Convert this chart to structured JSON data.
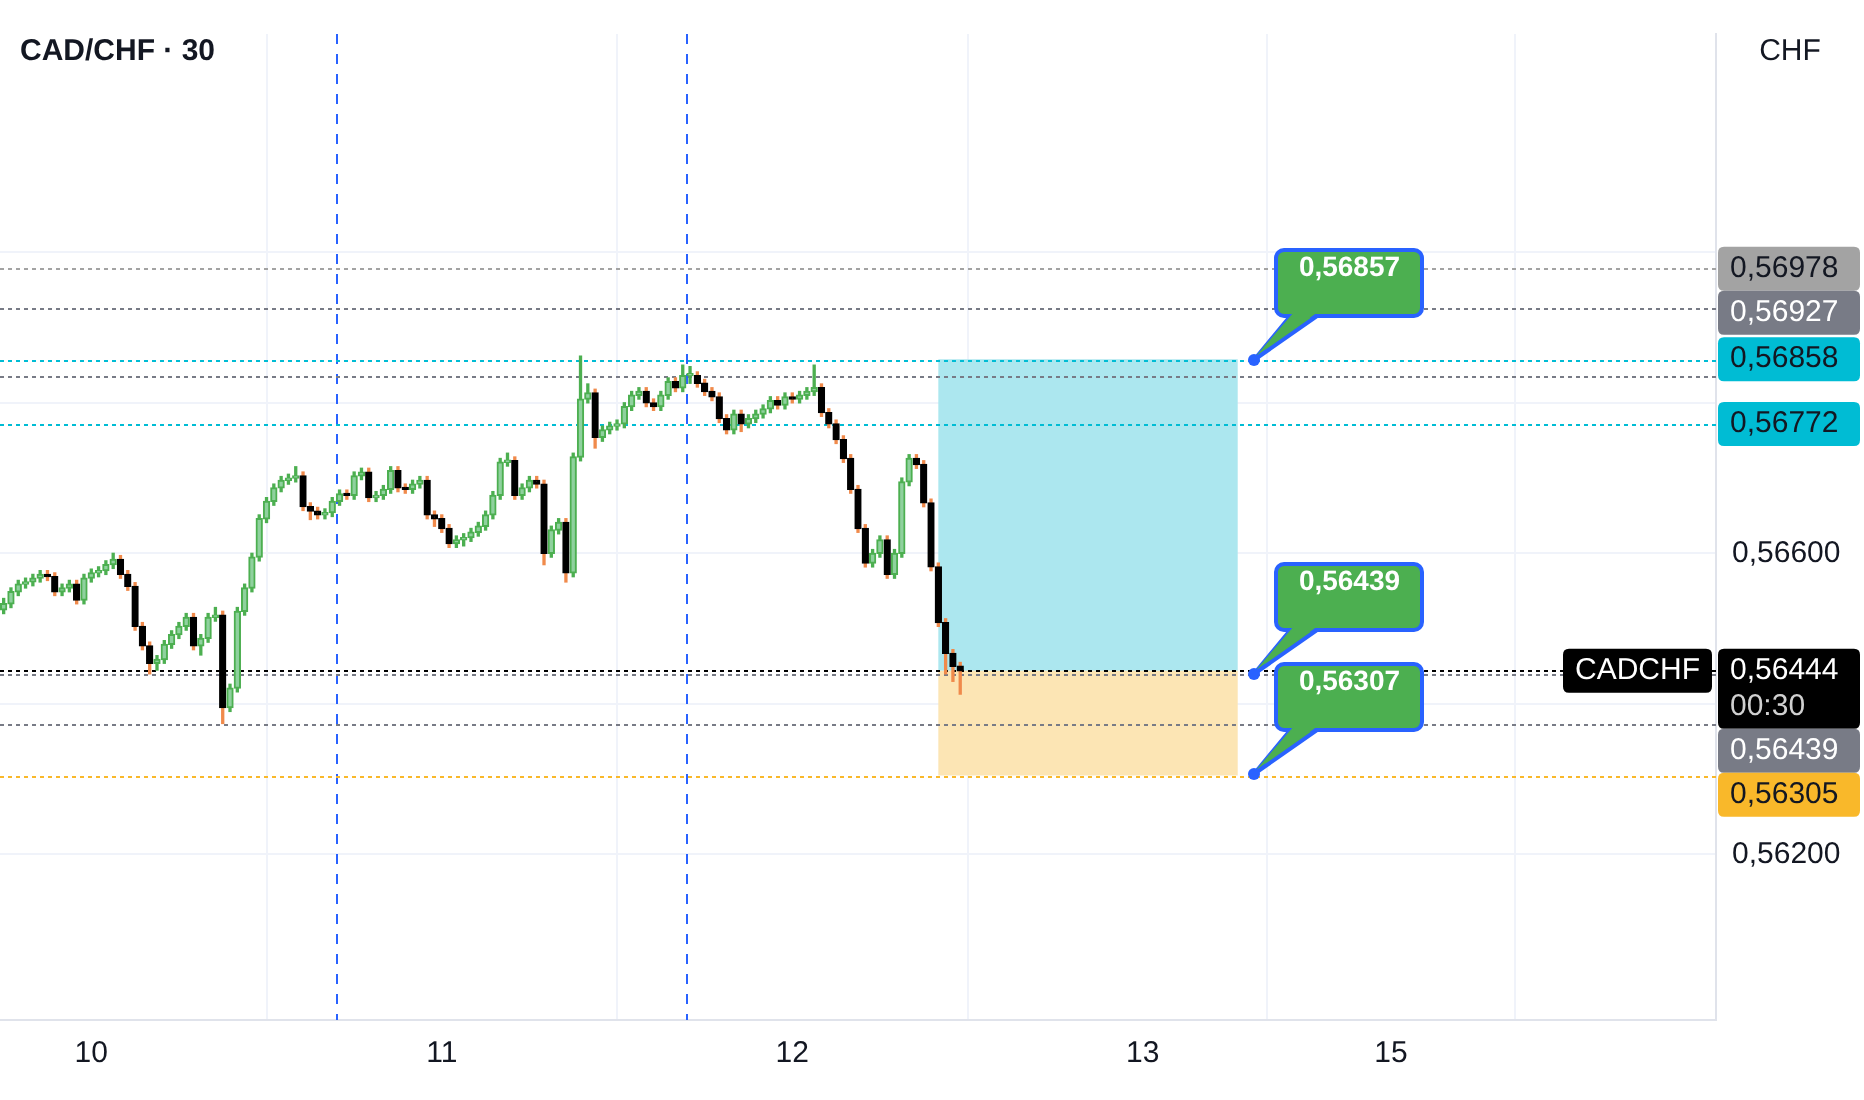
{
  "chart_data": {
    "type": "candlestick",
    "title": "CAD/CHF · 30",
    "ylabel": "CHF",
    "categories": [
      null,
      null,
      null,
      null,
      null,
      null,
      null,
      null,
      null,
      null,
      null,
      null,
      "10",
      null,
      null,
      null,
      null,
      null,
      null,
      null,
      null,
      null,
      null,
      null,
      null,
      null,
      null,
      null,
      null,
      null,
      null,
      null,
      null,
      null,
      null,
      null,
      null,
      null,
      null,
      null,
      null,
      null,
      null,
      null,
      null,
      null,
      null,
      null,
      null,
      null,
      null,
      null,
      null,
      null,
      null,
      null,
      null,
      null,
      null,
      null,
      "11",
      null,
      null,
      null,
      null,
      null,
      null,
      null,
      null,
      null,
      null,
      null,
      null,
      null,
      null,
      null,
      null,
      null,
      null,
      null,
      null,
      null,
      null,
      null,
      null,
      null,
      null,
      null,
      null,
      null,
      null,
      null,
      null,
      null,
      null,
      null,
      null,
      null,
      null,
      null,
      null,
      null,
      null,
      null,
      null,
      null,
      null,
      null,
      "12",
      null,
      null,
      null,
      null,
      null,
      null,
      null,
      null,
      null,
      null,
      null,
      null,
      null,
      null,
      null,
      null,
      null,
      null,
      null,
      null,
      null,
      null,
      null,
      null,
      null,
      null,
      null,
      null,
      null,
      null,
      null,
      null,
      null,
      null,
      null,
      null,
      null,
      null,
      null,
      null,
      null,
      null,
      null,
      null,
      null,
      null,
      null,
      "13",
      null,
      null,
      null,
      null,
      null,
      null,
      null,
      null,
      null,
      null,
      null,
      null,
      null,
      null,
      null,
      null,
      null,
      null,
      null,
      null,
      null,
      null,
      null,
      null,
      null,
      null,
      null,
      null,
      null,
      null,
      null,
      null,
      null,
      "15",
      null,
      null,
      null,
      null,
      null,
      null,
      null,
      null,
      null,
      null,
      null,
      null,
      null,
      null,
      null,
      null,
      null,
      null,
      null,
      null,
      null,
      null,
      null,
      null,
      null,
      null,
      null,
      null,
      null,
      null,
      null,
      null,
      null,
      null,
      null,
      null,
      null,
      null,
      null,
      null,
      null,
      null,
      null,
      null
    ],
    "ohlc": [
      [
        0.56525,
        0.5654,
        0.5652,
        0.56533
      ],
      [
        0.56533,
        0.56554,
        0.56528,
        0.56549
      ],
      [
        0.56549,
        0.56564,
        0.56544,
        0.56559
      ],
      [
        0.56559,
        0.56567,
        0.56554,
        0.56562
      ],
      [
        0.56562,
        0.56572,
        0.56557,
        0.56567
      ],
      [
        0.56567,
        0.56577,
        0.56562,
        0.56572
      ],
      [
        0.56572,
        0.56577,
        0.56564,
        0.56569
      ],
      [
        0.56569,
        0.56574,
        0.56544,
        0.56549
      ],
      [
        0.56549,
        0.56559,
        0.56544,
        0.56554
      ],
      [
        0.56554,
        0.56564,
        0.56549,
        0.56559
      ],
      [
        0.56559,
        0.56564,
        0.56533,
        0.56538
      ],
      [
        0.56538,
        0.56572,
        0.56533,
        0.56567
      ],
      [
        0.56567,
        0.56579,
        0.56562,
        0.56574
      ],
      [
        0.56574,
        0.56582,
        0.56569,
        0.56577
      ],
      [
        0.56577,
        0.5659,
        0.56572,
        0.56585
      ],
      [
        0.56585,
        0.566,
        0.5658,
        0.56592
      ],
      [
        0.56592,
        0.56597,
        0.56567,
        0.56572
      ],
      [
        0.56572,
        0.56577,
        0.56551,
        0.56556
      ],
      [
        0.56556,
        0.56561,
        0.56498,
        0.56503
      ],
      [
        0.56503,
        0.56508,
        0.56472,
        0.56477
      ],
      [
        0.56477,
        0.56482,
        0.5644,
        0.56454
      ],
      [
        0.56454,
        0.56464,
        0.56445,
        0.56459
      ],
      [
        0.56459,
        0.56484,
        0.56454,
        0.56479
      ],
      [
        0.56479,
        0.56497,
        0.56474,
        0.56492
      ],
      [
        0.56492,
        0.56508,
        0.56487,
        0.56503
      ],
      [
        0.56503,
        0.5652,
        0.56498,
        0.56515
      ],
      [
        0.56515,
        0.5652,
        0.56472,
        0.56477
      ],
      [
        0.56477,
        0.56492,
        0.56465,
        0.56487
      ],
      [
        0.56487,
        0.5652,
        0.56482,
        0.56515
      ],
      [
        0.56515,
        0.56528,
        0.5651,
        0.56518
      ],
      [
        0.56518,
        0.56523,
        0.56374,
        0.56395
      ],
      [
        0.56395,
        0.56426,
        0.5639,
        0.56421
      ],
      [
        0.56421,
        0.56528,
        0.56416,
        0.56523
      ],
      [
        0.56523,
        0.56559,
        0.56518,
        0.56554
      ],
      [
        0.56554,
        0.566,
        0.56549,
        0.56595
      ],
      [
        0.56595,
        0.56651,
        0.5659,
        0.56646
      ],
      [
        0.56646,
        0.56674,
        0.56641,
        0.56669
      ],
      [
        0.56669,
        0.56692,
        0.56664,
        0.56687
      ],
      [
        0.56687,
        0.56702,
        0.56682,
        0.56697
      ],
      [
        0.56697,
        0.56705,
        0.56692,
        0.567
      ],
      [
        0.567,
        0.56715,
        0.56695,
        0.56703
      ],
      [
        0.56703,
        0.56708,
        0.56657,
        0.56662
      ],
      [
        0.56662,
        0.56667,
        0.56645,
        0.56656
      ],
      [
        0.56656,
        0.56661,
        0.56646,
        0.56651
      ],
      [
        0.56651,
        0.56659,
        0.56646,
        0.56654
      ],
      [
        0.56654,
        0.56674,
        0.56649,
        0.56669
      ],
      [
        0.56669,
        0.56684,
        0.56664,
        0.56679
      ],
      [
        0.56679,
        0.56684,
        0.56672,
        0.56677
      ],
      [
        0.56677,
        0.56708,
        0.56672,
        0.56703
      ],
      [
        0.56703,
        0.56713,
        0.56698,
        0.56708
      ],
      [
        0.56708,
        0.56713,
        0.56669,
        0.56674
      ],
      [
        0.56674,
        0.56682,
        0.56669,
        0.56677
      ],
      [
        0.56677,
        0.5669,
        0.56672,
        0.56685
      ],
      [
        0.56685,
        0.56715,
        0.5668,
        0.5671
      ],
      [
        0.5671,
        0.56715,
        0.56682,
        0.56687
      ],
      [
        0.56687,
        0.56692,
        0.5668,
        0.56685
      ],
      [
        0.56685,
        0.56697,
        0.5668,
        0.56692
      ],
      [
        0.56692,
        0.56702,
        0.56687,
        0.56697
      ],
      [
        0.56697,
        0.56702,
        0.56646,
        0.56651
      ],
      [
        0.56651,
        0.56656,
        0.56636,
        0.56646
      ],
      [
        0.56646,
        0.56651,
        0.56628,
        0.56633
      ],
      [
        0.56633,
        0.56638,
        0.56608,
        0.56613
      ],
      [
        0.56613,
        0.56623,
        0.56608,
        0.56618
      ],
      [
        0.56618,
        0.56626,
        0.5661,
        0.56621
      ],
      [
        0.56621,
        0.56633,
        0.56616,
        0.56628
      ],
      [
        0.56628,
        0.56641,
        0.56623,
        0.56636
      ],
      [
        0.56636,
        0.56656,
        0.56631,
        0.56651
      ],
      [
        0.56651,
        0.56682,
        0.56646,
        0.56677
      ],
      [
        0.56677,
        0.56726,
        0.56672,
        0.56721
      ],
      [
        0.56721,
        0.56733,
        0.56716,
        0.56723
      ],
      [
        0.56723,
        0.56728,
        0.56672,
        0.56677
      ],
      [
        0.56677,
        0.56692,
        0.56672,
        0.56687
      ],
      [
        0.56687,
        0.56702,
        0.56682,
        0.56697
      ],
      [
        0.56697,
        0.56702,
        0.56687,
        0.56692
      ],
      [
        0.56692,
        0.56697,
        0.56585,
        0.566
      ],
      [
        0.566,
        0.56636,
        0.56595,
        0.56631
      ],
      [
        0.56631,
        0.56646,
        0.56626,
        0.56641
      ],
      [
        0.56641,
        0.56646,
        0.56562,
        0.56574
      ],
      [
        0.56574,
        0.56733,
        0.56569,
        0.56728
      ],
      [
        0.56728,
        0.56862,
        0.56723,
        0.56805
      ],
      [
        0.56805,
        0.56825,
        0.568,
        0.56813
      ],
      [
        0.56813,
        0.56818,
        0.5674,
        0.56754
      ],
      [
        0.56754,
        0.56769,
        0.56749,
        0.56764
      ],
      [
        0.56764,
        0.56774,
        0.56759,
        0.56769
      ],
      [
        0.56769,
        0.56777,
        0.56764,
        0.56772
      ],
      [
        0.56772,
        0.568,
        0.56767,
        0.56795
      ],
      [
        0.56795,
        0.56815,
        0.5679,
        0.5681
      ],
      [
        0.5681,
        0.5682,
        0.56805,
        0.56815
      ],
      [
        0.56815,
        0.5682,
        0.56795,
        0.568
      ],
      [
        0.568,
        0.56805,
        0.5679,
        0.56795
      ],
      [
        0.56795,
        0.56815,
        0.5679,
        0.5681
      ],
      [
        0.5681,
        0.56833,
        0.56805,
        0.56828
      ],
      [
        0.56828,
        0.56833,
        0.56815,
        0.5682
      ],
      [
        0.5682,
        0.5685,
        0.56815,
        0.56836
      ],
      [
        0.56836,
        0.56848,
        0.56826,
        0.56836
      ],
      [
        0.56836,
        0.56841,
        0.56821,
        0.56826
      ],
      [
        0.56826,
        0.56831,
        0.5681,
        0.56815
      ],
      [
        0.56815,
        0.5682,
        0.56803,
        0.56808
      ],
      [
        0.56808,
        0.56813,
        0.56774,
        0.56779
      ],
      [
        0.56779,
        0.56784,
        0.56759,
        0.56764
      ],
      [
        0.56764,
        0.5679,
        0.56759,
        0.56785
      ],
      [
        0.56785,
        0.5679,
        0.56762,
        0.56772
      ],
      [
        0.56772,
        0.56784,
        0.56767,
        0.56779
      ],
      [
        0.56779,
        0.5679,
        0.56774,
        0.56785
      ],
      [
        0.56785,
        0.56797,
        0.5678,
        0.56792
      ],
      [
        0.56792,
        0.56808,
        0.56787,
        0.56803
      ],
      [
        0.56803,
        0.56808,
        0.56792,
        0.56797
      ],
      [
        0.56797,
        0.56813,
        0.56792,
        0.56808
      ],
      [
        0.56808,
        0.56813,
        0.568,
        0.56805
      ],
      [
        0.56805,
        0.56815,
        0.568,
        0.5681
      ],
      [
        0.5681,
        0.5682,
        0.56805,
        0.56815
      ],
      [
        0.56815,
        0.5685,
        0.5681,
        0.5682
      ],
      [
        0.5682,
        0.56825,
        0.56782,
        0.56787
      ],
      [
        0.56787,
        0.56792,
        0.56767,
        0.56772
      ],
      [
        0.56772,
        0.56777,
        0.56746,
        0.56751
      ],
      [
        0.56751,
        0.56756,
        0.56721,
        0.56726
      ],
      [
        0.56726,
        0.56731,
        0.5668,
        0.56685
      ],
      [
        0.56685,
        0.5669,
        0.56628,
        0.56633
      ],
      [
        0.56633,
        0.56638,
        0.56582,
        0.56587
      ],
      [
        0.56587,
        0.56605,
        0.56582,
        0.566
      ],
      [
        0.566,
        0.56623,
        0.56595,
        0.56618
      ],
      [
        0.56618,
        0.56623,
        0.56567,
        0.56572
      ],
      [
        0.56572,
        0.56605,
        0.56567,
        0.566
      ],
      [
        0.566,
        0.567,
        0.56595,
        0.56695
      ],
      [
        0.56695,
        0.56731,
        0.5669,
        0.56726
      ],
      [
        0.56726,
        0.56731,
        0.56713,
        0.56718
      ],
      [
        0.56718,
        0.56723,
        0.56662,
        0.56667
      ],
      [
        0.56667,
        0.56672,
        0.56577,
        0.56582
      ],
      [
        0.56582,
        0.56587,
        0.56503,
        0.56508
      ],
      [
        0.56508,
        0.56513,
        0.5644,
        0.56467
      ],
      [
        0.56467,
        0.56472,
        0.5643,
        0.5645
      ],
      [
        0.5645,
        0.56455,
        0.56413,
        0.56444
      ],
      null,
      null,
      null,
      null,
      null,
      null,
      null,
      null,
      null,
      null,
      null,
      null,
      null,
      null,
      null,
      null,
      null,
      null,
      null,
      null,
      null,
      null,
      null,
      null,
      null,
      null,
      null,
      null,
      null,
      null,
      null,
      null,
      null,
      null,
      null,
      null,
      null,
      null,
      null,
      null,
      null,
      null,
      null,
      null,
      null,
      null,
      null,
      null,
      null,
      null,
      null,
      null,
      null,
      null,
      null,
      null,
      null,
      null,
      null,
      null,
      null,
      null,
      null,
      null,
      null,
      null,
      null,
      null,
      null,
      null,
      null,
      null,
      null,
      null,
      null,
      null,
      null,
      null,
      null,
      null,
      null,
      null,
      null,
      null,
      null,
      null,
      null,
      null,
      null,
      null,
      null,
      null,
      null,
      null,
      null,
      null,
      null,
      null,
      null,
      null,
      null,
      null,
      null
    ],
    "ylim": [
      0.5598,
      0.5729
    ],
    "yticks": [
      {
        "value": 0.562,
        "label": "0,56200"
      },
      {
        "value": 0.564,
        "label": null
      },
      {
        "value": 0.566,
        "label": "0,56600"
      },
      {
        "value": 0.568,
        "label": null
      },
      {
        "value": 0.57,
        "label": null
      }
    ],
    "grid": true,
    "ref_lines": [
      {
        "axis": "y",
        "value": 0.56978,
        "label": "0,56978",
        "color": "#a3a3a3",
        "line_style": "dotted"
      },
      {
        "axis": "y",
        "value": 0.56927,
        "label": "0,56927",
        "color": "#787b86",
        "line_style": "dotted"
      },
      {
        "axis": "y",
        "value": 0.56858,
        "label": "0,56858",
        "color": "#00bcd4",
        "line_style": "dotted"
      },
      {
        "axis": "y",
        "value": 0.56836,
        "color": "#787b86",
        "line_style": "dotted"
      },
      {
        "axis": "y",
        "value": 0.56772,
        "label": "0,56772",
        "color": "#00bcd4",
        "line_style": "dotted"
      },
      {
        "axis": "y",
        "value": 0.56444,
        "label": "0,56444",
        "color": "#000000",
        "line_style": "dotted"
      },
      {
        "axis": "y",
        "value": 0.56439,
        "label": "0,56439",
        "color": "#787b86",
        "line_style": "dotted"
      },
      {
        "axis": "y",
        "value": 0.56374,
        "color": "#787b86",
        "line_style": "dotted"
      },
      {
        "axis": "y",
        "value": 0.56305,
        "label": "0,56305",
        "color": "#f9b82a",
        "line_style": "dotted"
      }
    ],
    "bands": [
      {
        "axis": "y",
        "from": 0.56444,
        "to": 0.56858,
        "color": "#ace7ef"
      },
      {
        "axis": "y",
        "from": 0.56305,
        "to": 0.56444,
        "color": "#fce5b4"
      }
    ],
    "annotations": [
      {
        "text": "0,56857",
        "y": 0.56857
      },
      {
        "text": "0,56439",
        "y": 0.56439
      },
      {
        "text": "0,56307",
        "y": 0.56307
      },
      "CADCHF",
      "00:30"
    ],
    "legend": false
  }
}
